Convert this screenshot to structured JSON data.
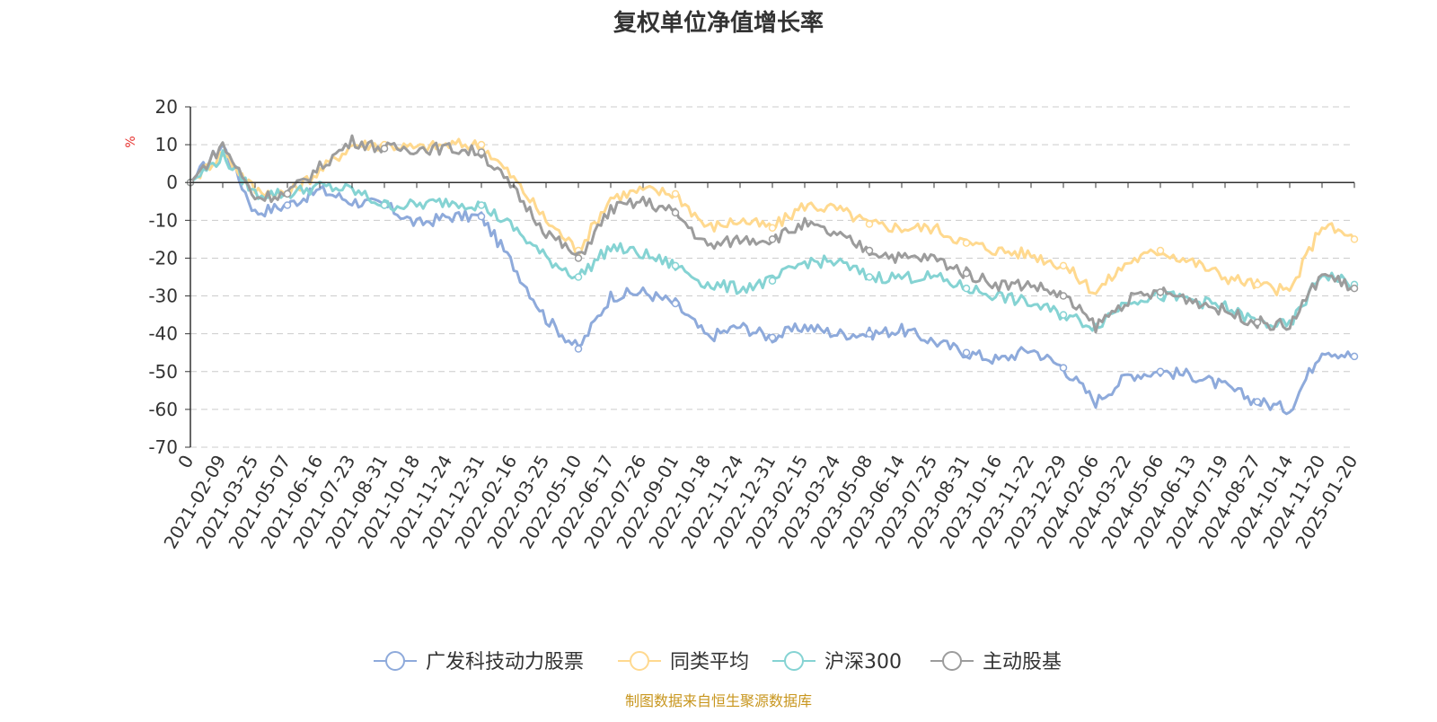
{
  "chart_data": {
    "type": "line",
    "title": "复权单位净值增长率",
    "ylabel": "%",
    "xlabel": "",
    "ylim": [
      -70,
      20
    ],
    "y_ticks": [
      20,
      10,
      0,
      -10,
      -20,
      -30,
      -40,
      -50,
      -60,
      -70
    ],
    "y_tick_labels": [
      "20",
      "10",
      "0",
      "-10",
      "-20",
      "-30",
      "-40",
      "-50",
      "-60",
      "-70"
    ],
    "grid": true,
    "legend_position": "bottom-center",
    "x_tick_labels": [
      "0",
      "2021-02-09",
      "2021-03-25",
      "2021-05-07",
      "2021-06-16",
      "2021-07-23",
      "2021-08-31",
      "2021-10-18",
      "2021-11-24",
      "2021-12-31",
      "2022-02-16",
      "2022-03-25",
      "2022-05-10",
      "2022-06-17",
      "2022-07-26",
      "2022-09-01",
      "2022-10-18",
      "2022-11-24",
      "2022-12-31",
      "2023-02-15",
      "2023-03-24",
      "2023-05-08",
      "2023-06-14",
      "2023-07-25",
      "2023-08-31",
      "2023-10-16",
      "2023-11-22",
      "2023-12-29",
      "2024-02-06",
      "2024-03-22",
      "2024-05-06",
      "2024-06-13",
      "2024-07-19",
      "2024-08-27",
      "2024-10-14",
      "2024-11-20",
      "2025-01-20"
    ],
    "series": [
      {
        "name": "广发科技动力股票",
        "color": "#8eaadb",
        "values": [
          0,
          10,
          -8,
          -6,
          -2,
          -5,
          -6,
          -11,
          -9,
          -9,
          -22,
          -36,
          -44,
          -30,
          -29,
          -32,
          -41,
          -38,
          -41,
          -38,
          -40,
          -40,
          -39,
          -42,
          -45,
          -47,
          -44,
          -49,
          -58,
          -51,
          -50,
          -51,
          -54,
          -58,
          -60,
          -44,
          -46
        ]
      },
      {
        "name": "同类平均",
        "color": "#ffd98f",
        "values": [
          0,
          8,
          -2,
          -3,
          3,
          10,
          10,
          9,
          10,
          10,
          1,
          -10,
          -18,
          -4,
          -2,
          -3,
          -12,
          -10,
          -12,
          -6,
          -7,
          -11,
          -12,
          -12,
          -16,
          -18,
          -19,
          -22,
          -29,
          -21,
          -18,
          -21,
          -25,
          -27,
          -29,
          -11,
          -15
        ]
      },
      {
        "name": "沪深300",
        "color": "#85d3d3",
        "values": [
          0,
          7,
          -3,
          -3,
          -1,
          -2,
          -6,
          -6,
          -5,
          -6,
          -12,
          -20,
          -25,
          -17,
          -19,
          -22,
          -27,
          -28,
          -26,
          -21,
          -21,
          -25,
          -25,
          -25,
          -28,
          -30,
          -32,
          -35,
          -38,
          -31,
          -30,
          -31,
          -33,
          -37,
          -38,
          -24,
          -27
        ]
      },
      {
        "name": "主动股基",
        "color": "#9c9c9c",
        "values": [
          0,
          10,
          -4,
          -3,
          4,
          11,
          9,
          9,
          9,
          8,
          -2,
          -13,
          -20,
          -7,
          -5,
          -8,
          -17,
          -15,
          -15,
          -11,
          -14,
          -18,
          -20,
          -20,
          -24,
          -27,
          -27,
          -30,
          -38,
          -31,
          -29,
          -31,
          -34,
          -37,
          -38,
          -24,
          -28
        ]
      }
    ]
  },
  "footer": {
    "source_text": "制图数据来自恒生聚源数据库",
    "source_color": "#c8961e"
  },
  "colors": {
    "axis": "#333333",
    "grid": "#cccccc",
    "title": "#333333",
    "ylabel": "#e6312e"
  }
}
